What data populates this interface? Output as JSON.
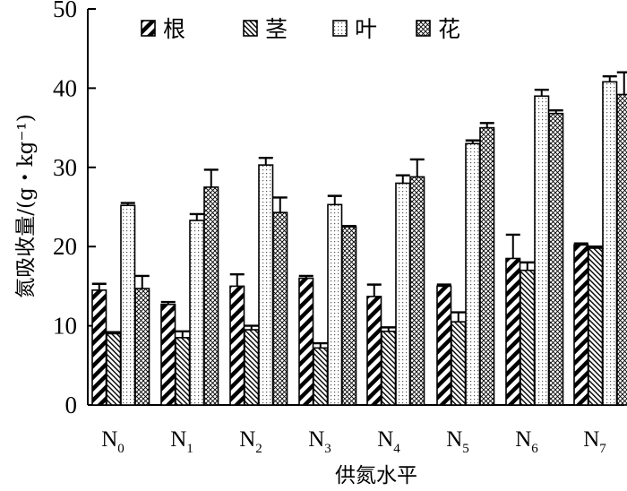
{
  "chart_data": {
    "type": "bar",
    "categories": [
      {
        "main": "N",
        "sub": "0"
      },
      {
        "main": "N",
        "sub": "1"
      },
      {
        "main": "N",
        "sub": "2"
      },
      {
        "main": "N",
        "sub": "3"
      },
      {
        "main": "N",
        "sub": "4"
      },
      {
        "main": "N",
        "sub": "5"
      },
      {
        "main": "N",
        "sub": "6"
      },
      {
        "main": "N",
        "sub": "7"
      }
    ],
    "series": [
      {
        "name": "根",
        "pattern": "diag-thick",
        "values": [
          14.5,
          12.7,
          15.0,
          16.0,
          13.7,
          15.0,
          18.5,
          20.2
        ],
        "errors": [
          0.8,
          0.3,
          1.5,
          0.3,
          1.5,
          0.2,
          3.0,
          0.2
        ]
      },
      {
        "name": "茎",
        "pattern": "diag-thin",
        "values": [
          9.0,
          8.5,
          9.5,
          7.2,
          9.3,
          10.5,
          17.0,
          19.8
        ],
        "errors": [
          0.2,
          0.8,
          0.5,
          0.6,
          0.5,
          1.2,
          1.0,
          0.2
        ]
      },
      {
        "name": "叶",
        "pattern": "dots",
        "values": [
          25.2,
          23.3,
          30.3,
          25.3,
          28.0,
          33.0,
          39.0,
          40.8
        ],
        "errors": [
          0.3,
          0.8,
          0.9,
          1.1,
          1.0,
          0.4,
          0.8,
          0.7
        ]
      },
      {
        "name": "花",
        "pattern": "crosshatch",
        "values": [
          14.7,
          27.5,
          24.3,
          22.5,
          28.8,
          35.0,
          36.8,
          39.2
        ],
        "errors": [
          1.6,
          2.2,
          1.9,
          0.1,
          2.2,
          0.6,
          0.4,
          2.8
        ]
      }
    ],
    "xlabel": "供氮水平",
    "ylabel": "氮吸收量/(g・kg⁻¹)",
    "ylim": [
      0,
      50
    ],
    "yticks": [
      "0",
      "10",
      "20",
      "30",
      "40",
      "50"
    ],
    "grid": false,
    "legend": "top-left"
  }
}
